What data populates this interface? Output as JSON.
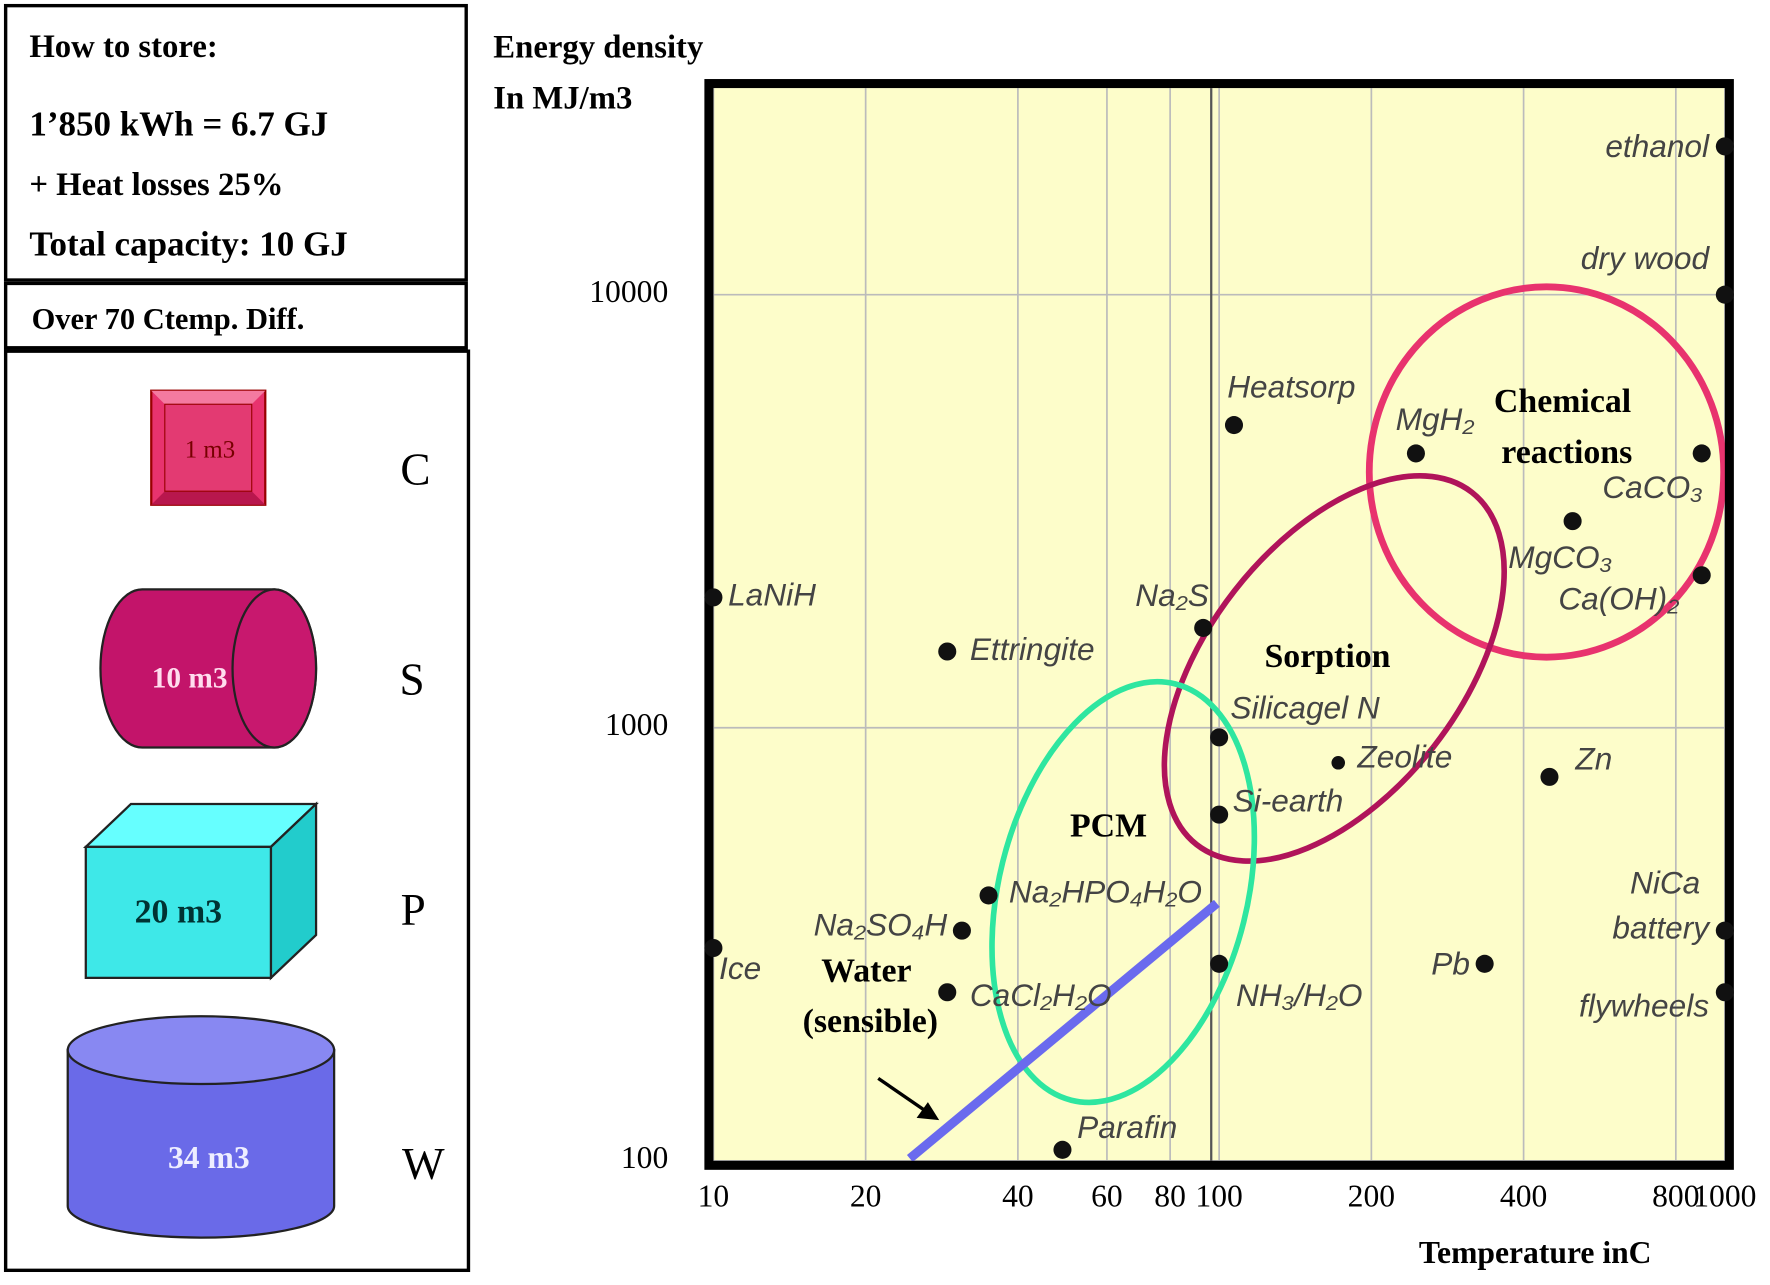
{
  "panel": {
    "heading": "How to store:",
    "lines": [
      "1’850 kWh = 6.7 GJ",
      "+ Heat losses 25%",
      "Total capacity: 10 GJ"
    ],
    "condition": "Over  70 Ctemp. Diff.",
    "storage": [
      {
        "volume": "1 m3",
        "label": "C"
      },
      {
        "volume": "10 m3",
        "label": "S"
      },
      {
        "volume": "20 m3",
        "label": "P"
      },
      {
        "volume": "34 m3",
        "label": "W"
      }
    ]
  },
  "chart_data": {
    "type": "scatter",
    "ylabel": "Energy density In MJ/m3",
    "xlabel": "Temperature inC",
    "xscale": "log",
    "yscale": "log",
    "grid": true,
    "background": "#fdfdca",
    "color": "#111111",
    "labels": [
      "ethanol",
      "dry wood",
      "Heatsorp",
      "MgH₂",
      "CaCO₃",
      "MgCO₃",
      "Ca(OH)₂",
      "LaNiH",
      "Na₂S",
      "Ettringite",
      "Silicagel N",
      "Zeolite",
      "Zn",
      "Si-earth",
      "Na₂HPO₄H₂O",
      "Na₂SO₄H",
      "Ice",
      "NH₃/H₂O",
      "Pb",
      "NiCa battery",
      "CaCl₂H₂O",
      "flywheels",
      "Parafin"
    ],
    "x": [
      1000,
      1000,
      107,
      245,
      900,
      500,
      900,
      10,
      93,
      29,
      100,
      172,
      450,
      100,
      35,
      31,
      10,
      100,
      335,
      1000,
      29,
      1000,
      49
    ],
    "values": [
      22000,
      10000,
      5000,
      4300,
      4300,
      3000,
      2250,
      2000,
      1700,
      1500,
      950,
      830,
      770,
      630,
      410,
      340,
      310,
      285,
      285,
      340,
      245,
      245,
      106
    ],
    "annotations": [
      "Chemical reactions",
      "Sorption",
      "PCM",
      "Water (sensible)"
    ],
    "xlim": [
      10,
      1000
    ],
    "ylim": [
      100,
      30000
    ],
    "xticks": [
      10,
      20,
      40,
      60,
      80,
      100,
      200,
      400,
      800,
      1000
    ],
    "yticks": [
      100,
      1000,
      10000
    ]
  }
}
